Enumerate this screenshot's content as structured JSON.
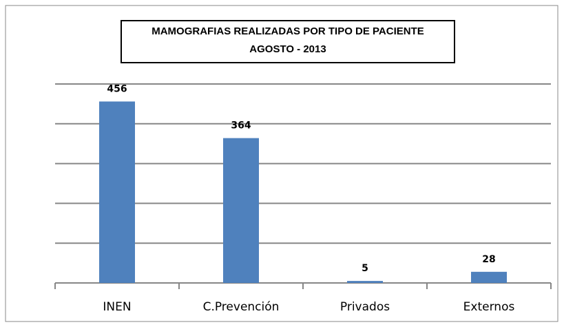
{
  "chart_data": {
    "type": "bar",
    "title": [
      "MAMOGRAFIAS REALIZADAS POR TIPO DE PACIENTE",
      "AGOSTO  - 2013"
    ],
    "categories": [
      "INEN",
      "C.Prevención",
      "Privados",
      "Externos"
    ],
    "values": [
      456,
      364,
      5,
      28
    ],
    "color": "#4f81bd",
    "ylim": [
      0,
      500
    ],
    "yticks": [
      0,
      100,
      200,
      300,
      400,
      500
    ],
    "grid": true
  }
}
